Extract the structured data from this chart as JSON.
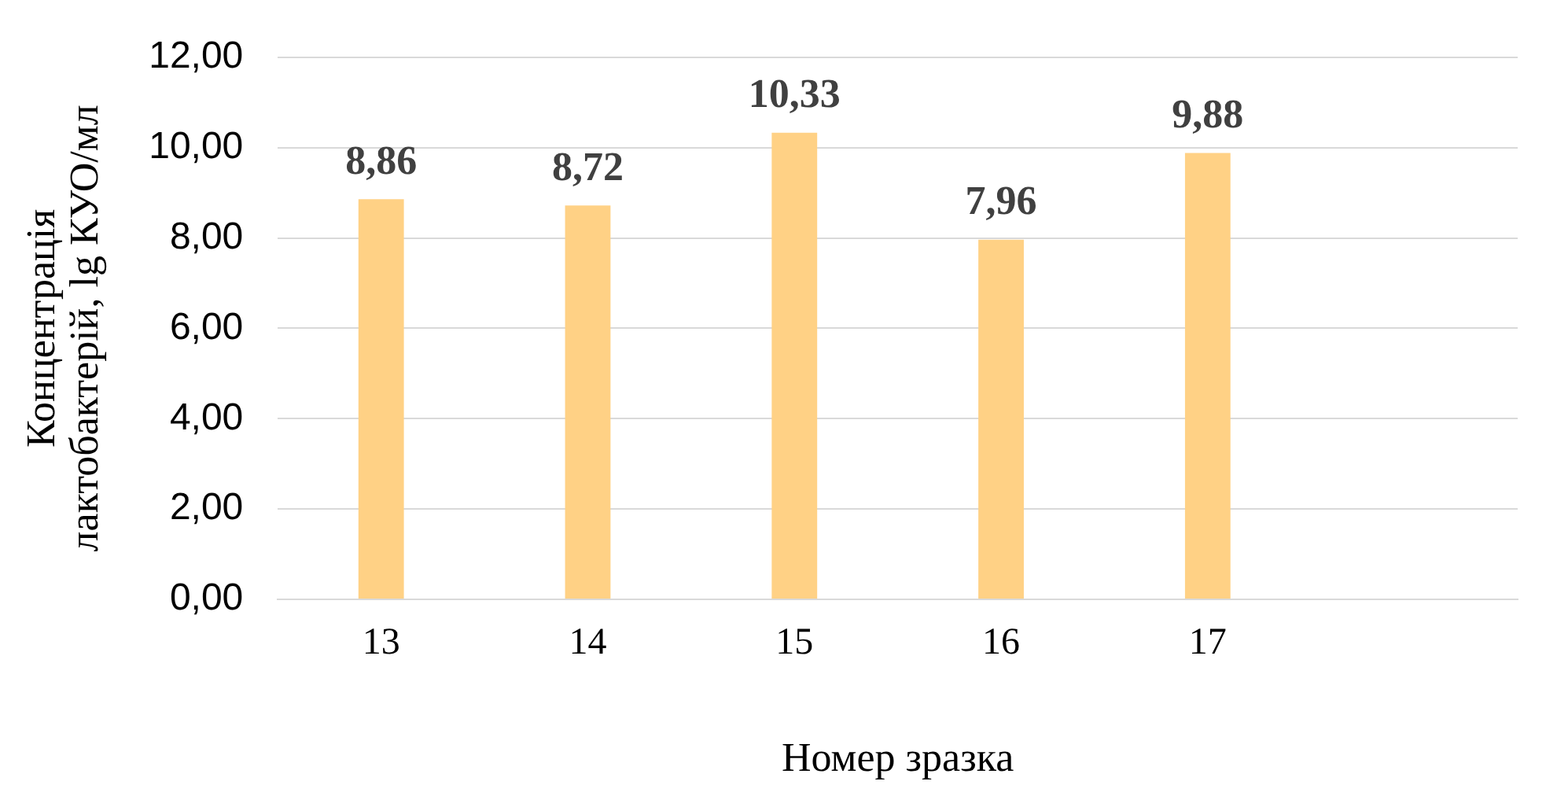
{
  "chart_data": {
    "type": "bar",
    "xlabel": "Номер зразка",
    "ylabel": "Концентрація\nлактобактерій, lg КУО/мл",
    "categories": [
      "13",
      "14",
      "15",
      "16",
      "17",
      null
    ],
    "values": [
      8.86,
      8.72,
      10.33,
      7.96,
      9.88,
      null
    ],
    "value_labels": [
      "8,86",
      "8,72",
      "10,33",
      "7,96",
      "9,88",
      null
    ],
    "color": "#ffd185",
    "ylim": [
      0,
      12
    ],
    "yticks": [
      {
        "value": 0,
        "label": "0,00"
      },
      {
        "value": 2,
        "label": "2,00"
      },
      {
        "value": 4,
        "label": "4,00"
      },
      {
        "value": 6,
        "label": "6,00"
      },
      {
        "value": 8,
        "label": "8,00"
      },
      {
        "value": 10,
        "label": "10,00"
      },
      {
        "value": 12,
        "label": "12,00"
      }
    ],
    "grid": "y",
    "legend": false
  }
}
